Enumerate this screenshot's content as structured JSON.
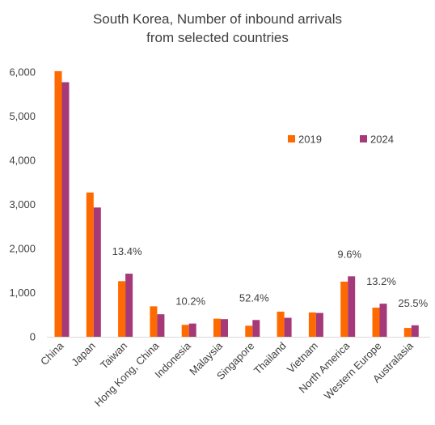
{
  "chart_data": {
    "type": "bar",
    "title": [
      "South Korea, Number of inbound arrivals",
      "from selected countries"
    ],
    "xlabel": "",
    "ylabel": "",
    "ylim": [
      0,
      6000
    ],
    "yticks": [
      "0",
      "1,000",
      "2,000",
      "3,000",
      "4,000",
      "5,000",
      "6,000"
    ],
    "yticks_values": [
      0,
      1000,
      2000,
      3000,
      4000,
      5000,
      6000
    ],
    "grid": false,
    "legend_position": "right, inside plot",
    "categories": [
      "China",
      "Japan",
      "Taiwan",
      "Hong Kong, China",
      "Indonesia",
      "Malaysia",
      "Singapore",
      "Thailand",
      "Vietnam",
      "North America",
      "Western Europe",
      "Australasia"
    ],
    "series": [
      {
        "name": "2019",
        "color": "#FF6A00",
        "values": [
          6020,
          3270,
          1260,
          690,
          270,
          410,
          250,
          570,
          550,
          1250,
          660,
          200
        ]
      },
      {
        "name": "2024",
        "color": "#A63A79",
        "values": [
          5770,
          2930,
          1430,
          510,
          300,
          400,
          380,
          430,
          540,
          1370,
          750,
          260
        ]
      }
    ],
    "annotations": [
      {
        "category": "Taiwan",
        "text": "13.4%"
      },
      {
        "category": "Indonesia",
        "text": "10.2%"
      },
      {
        "category": "Singapore",
        "text": "52.4%"
      },
      {
        "category": "North America",
        "text": "9.6%"
      },
      {
        "category": "Western Europe",
        "text": "13.2%"
      },
      {
        "category": "Australasia",
        "text": "25.5%"
      }
    ]
  }
}
